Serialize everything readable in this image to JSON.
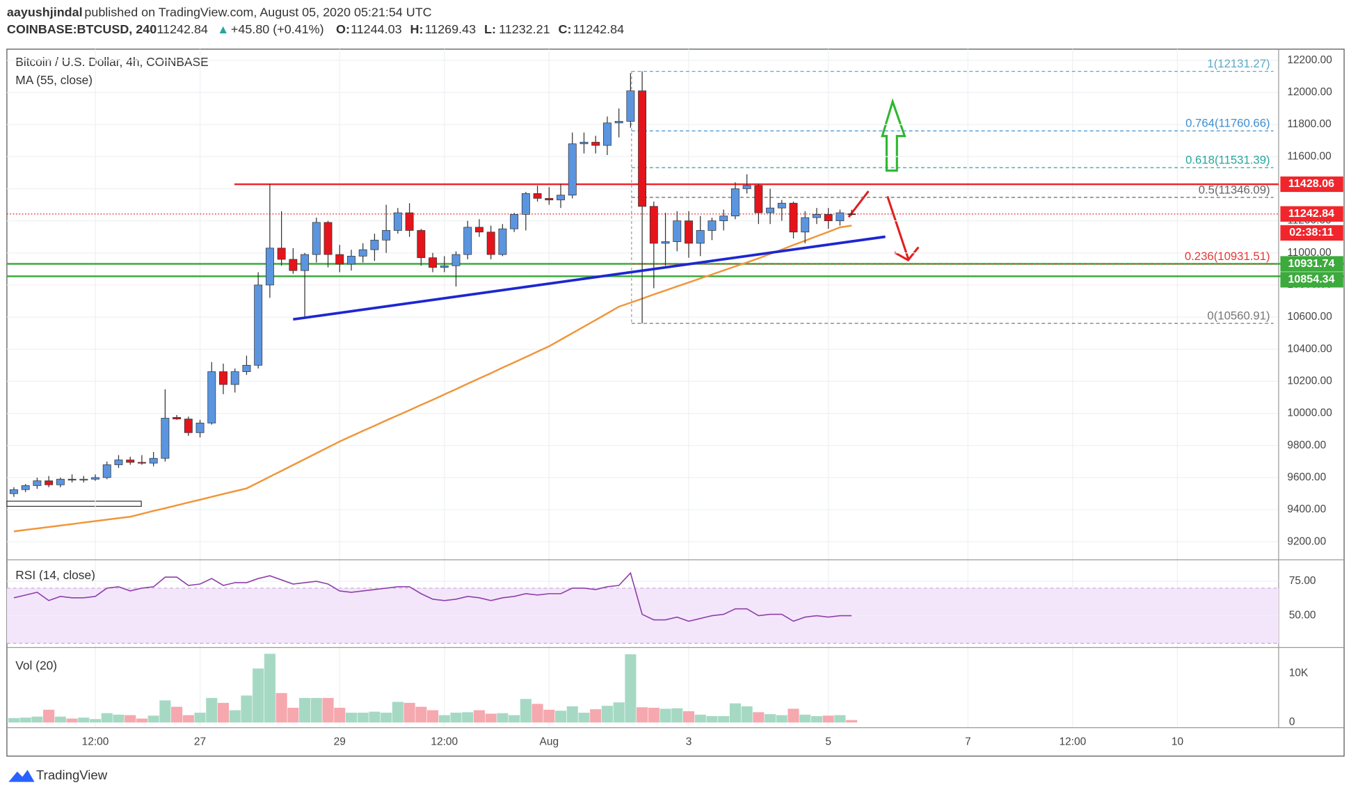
{
  "header": {
    "author": "aayushjindal",
    "published": "published on TradingView.com, August 05, 2020 05:21:54 UTC",
    "symbol": "COINBASE:BTCUSD, 240",
    "last": 11242.84,
    "arrow": "▲",
    "change": "+45.80 (+0.41%)",
    "ohlc": [
      {
        "key": "O:",
        "value": 11244.03
      },
      {
        "key": "H:",
        "value": 11269.43
      },
      {
        "key": "L:",
        "value": 11232.21
      },
      {
        "key": "C:",
        "value": 11242.84
      }
    ]
  },
  "chart_data": {
    "type": "candlestick",
    "title": "Bitcoin / U.S. Dollar, 4h, COINBASE",
    "up_color": "#5b95e0",
    "down_color": "#e5141b",
    "xlim": [
      -0.6,
      108.7
    ],
    "xticks": [
      {
        "value": 7,
        "label": "12:00"
      },
      {
        "value": 16,
        "label": "27"
      },
      {
        "value": 28,
        "label": "29"
      },
      {
        "value": 37,
        "label": "12:00"
      },
      {
        "value": 46,
        "label": "Aug"
      },
      {
        "value": 58,
        "label": "3"
      },
      {
        "value": 70,
        "label": "5"
      },
      {
        "value": 82,
        "label": "7"
      },
      {
        "value": 91,
        "label": "12:00"
      },
      {
        "value": 100,
        "label": "10"
      }
    ],
    "ylim": [
      9088,
      12270
    ],
    "yticks": [
      {
        "value": 9200,
        "label": "9200.00"
      },
      {
        "value": 9400,
        "label": "9400.00"
      },
      {
        "value": 9600,
        "label": "9600.00"
      },
      {
        "value": 9800,
        "label": "9800.00"
      },
      {
        "value": 10000,
        "label": "10000.00"
      },
      {
        "value": 10200,
        "label": "10200.00"
      },
      {
        "value": 10400,
        "label": "10400.00"
      },
      {
        "value": 10600,
        "label": "10600.00"
      },
      {
        "value": 10800,
        "label": "10800.00"
      },
      {
        "value": 11000,
        "label": "11000.00"
      },
      {
        "value": 11200,
        "label": "11200.00"
      },
      {
        "value": 11400,
        "label": "11400.00"
      },
      {
        "value": 11600,
        "label": "11600.00"
      },
      {
        "value": 11800,
        "label": "11800.00"
      },
      {
        "value": 12000,
        "label": "12000.00"
      },
      {
        "value": 12200,
        "label": "12200.00"
      }
    ],
    "grid": true,
    "candles": {
      "open": [
        9500,
        9525,
        9550,
        9580,
        9555,
        9590,
        9585,
        9590,
        9600,
        9680,
        9710,
        9695,
        9690,
        9720,
        9975,
        9965,
        9880,
        9940,
        10260,
        10180,
        10260,
        10300,
        10800,
        11030,
        10960,
        10890,
        10990,
        11190,
        10990,
        10930,
        10980,
        11020,
        11080,
        11140,
        11250,
        11140,
        10970,
        10910,
        10920,
        10990,
        11160,
        11130,
        10990,
        11150,
        11240,
        11370,
        11340,
        11330,
        11360,
        11680,
        11690,
        11670,
        11810,
        11820,
        12010,
        11290,
        11060,
        11070,
        11200,
        11060,
        11140,
        11200,
        11230,
        11400,
        11420,
        11250,
        11280,
        11310,
        11130,
        11220,
        11240,
        11200,
        11244.03
      ],
      "high": [
        9540,
        9560,
        9600,
        9610,
        9600,
        9620,
        9610,
        9620,
        9700,
        9740,
        9730,
        9740,
        9760,
        10150,
        9990,
        9980,
        9960,
        10320,
        10310,
        10280,
        10360,
        10880,
        11430,
        11260,
        11030,
        11000,
        11220,
        11200,
        11050,
        11020,
        11060,
        11120,
        11300,
        11280,
        11310,
        11150,
        11000,
        10980,
        11010,
        11200,
        11210,
        11170,
        11180,
        11250,
        11380,
        11420,
        11410,
        11430,
        11750,
        11750,
        11730,
        11850,
        11900,
        12120,
        12131.27,
        11320,
        11250,
        11260,
        11260,
        11230,
        11220,
        11270,
        11440,
        11490,
        11430,
        11400,
        11330,
        11320,
        11260,
        11280,
        11280,
        11270,
        11269.43
      ],
      "low": [
        9480,
        9510,
        9530,
        9540,
        9540,
        9570,
        9570,
        9580,
        9590,
        9660,
        9680,
        9680,
        9670,
        9700,
        9960,
        9860,
        9850,
        9930,
        10120,
        10130,
        10240,
        10280,
        10720,
        10920,
        10870,
        10600,
        10940,
        10910,
        10880,
        10890,
        10940,
        10950,
        11000,
        11120,
        11100,
        10920,
        10880,
        10880,
        10790,
        10960,
        11100,
        10960,
        10980,
        11130,
        11140,
        11320,
        11300,
        11280,
        11340,
        11620,
        11620,
        11610,
        11720,
        11780,
        10560.91,
        10780,
        10920,
        11010,
        10970,
        10980,
        11080,
        11140,
        11210,
        11370,
        11180,
        11180,
        11200,
        11090,
        11060,
        11180,
        11150,
        11170,
        11232.21
      ],
      "close": [
        9525,
        9550,
        9580,
        9555,
        9590,
        9585,
        9590,
        9600,
        9680,
        9710,
        9695,
        9690,
        9720,
        9970,
        9965,
        9880,
        9940,
        10260,
        10180,
        10260,
        10300,
        10800,
        11030,
        10960,
        10890,
        10990,
        11190,
        10990,
        10930,
        10980,
        11020,
        11080,
        11140,
        11250,
        11140,
        10970,
        10910,
        10920,
        10990,
        11160,
        11130,
        10990,
        11150,
        11240,
        11370,
        11340,
        11330,
        11360,
        11680,
        11690,
        11670,
        11810,
        11820,
        12010,
        11290,
        11060,
        11070,
        11200,
        11060,
        11140,
        11200,
        11230,
        11400,
        11420,
        11250,
        11280,
        11310,
        11130,
        11220,
        11240,
        11200,
        11250,
        11242.84
      ]
    },
    "ma": {
      "name": "MA (55, close)",
      "color": "#f0953b",
      "values": [
        9265,
        9274,
        9283,
        9292,
        9301,
        9310,
        9320,
        9329,
        9338,
        9347,
        9356,
        9374,
        9392,
        9409,
        9427,
        9445,
        9462,
        9480,
        9498,
        9515,
        9533,
        9569,
        9606,
        9642,
        9679,
        9715,
        9752,
        9788,
        9825,
        9858,
        9891,
        9923,
        9956,
        9988,
        10020,
        10053,
        10085,
        10118,
        10151,
        10185,
        10218,
        10251,
        10285,
        10318,
        10351,
        10385,
        10418,
        10459,
        10500,
        10541,
        10582,
        10623,
        10665,
        10690,
        10715,
        10741,
        10766,
        10791,
        10816,
        10841,
        10866,
        10891,
        10916,
        10941,
        10966,
        10994,
        11021,
        11049,
        11076,
        11104,
        11131,
        11159,
        11170
      ]
    },
    "resistance": {
      "value": 11428.06,
      "color": "#f0262c"
    },
    "supports": [
      {
        "value": 10931.74,
        "color": "#3caa3c"
      },
      {
        "value": 10854.34,
        "color": "#3caa3c"
      }
    ],
    "last_price": {
      "value": 11242.84,
      "countdown": "02:38:11",
      "color": "#f0262c"
    },
    "trendline": {
      "x": [
        24,
        74.9
      ],
      "values": [
        10586,
        11101
      ],
      "color": "#1c27d0"
    },
    "fib": [
      {
        "value": 12131.27,
        "label": "1(12131.27)",
        "color": "#5aa8c8"
      },
      {
        "value": 11760.66,
        "label": "0.764(11760.66)",
        "color": "#3f8fd0"
      },
      {
        "value": 11531.39,
        "label": "0.618(11531.39)",
        "color": "#26a69a"
      },
      {
        "value": 11346.09,
        "label": "0.5(11346.09)",
        "color": "#666666"
      },
      {
        "value": 10931.51,
        "label": "0.236(10931.51)",
        "color": "#e53935"
      },
      {
        "value": 10560.91,
        "label": "0(10560.91)",
        "color": "#777777"
      }
    ],
    "rsi": {
      "name": "RSI (14, close)",
      "color": "#8e3fa8",
      "band": [
        30,
        70
      ],
      "ylim": [
        26.9,
        90.6
      ],
      "yticks": [
        {
          "value": 50,
          "label": "50.00"
        },
        {
          "value": 75,
          "label": "75.00"
        }
      ],
      "values": [
        63,
        65,
        67,
        61,
        64,
        63,
        63,
        64,
        70,
        71,
        68,
        70,
        71,
        78,
        78,
        72,
        73,
        77,
        72,
        74,
        74,
        77,
        79,
        76,
        73,
        74,
        75,
        73,
        68,
        67,
        68,
        69,
        70,
        71,
        71,
        66,
        62,
        61,
        62,
        64,
        63,
        61,
        63,
        64,
        66,
        65,
        66,
        66,
        70,
        70,
        69,
        71,
        72,
        81,
        51,
        47,
        47,
        49,
        46,
        48,
        50,
        51,
        55,
        55,
        50,
        51,
        51,
        46,
        49,
        50,
        49,
        50,
        50
      ]
    },
    "volume": {
      "name": "Vol (20)",
      "up_color": "#a6d9c4",
      "down_color": "#f5a8ae",
      "ylim": [
        -1053,
        15263
      ],
      "yticks": [
        0,
        {
          "value": 10000,
          "label": "10K"
        }
      ],
      "values": [
        900,
        1000,
        1200,
        2600,
        1200,
        800,
        1000,
        700,
        1900,
        1600,
        1500,
        800,
        1400,
        4500,
        3200,
        1500,
        2000,
        5000,
        4000,
        2500,
        5500,
        11000,
        14000,
        6000,
        3000,
        5000,
        5000,
        5000,
        3000,
        2000,
        2000,
        2200,
        2000,
        4200,
        4000,
        3200,
        2500,
        1500,
        2000,
        2100,
        2500,
        1800,
        1900,
        1500,
        4800,
        3800,
        2600,
        2400,
        3300,
        2000,
        2700,
        3400,
        4100,
        13900,
        3100,
        3000,
        2800,
        2900,
        2300,
        1600,
        1300,
        1300,
        3900,
        3300,
        2100,
        1700,
        1500,
        2800,
        1600,
        1300,
        1400,
        1500,
        500
      ]
    }
  },
  "footer": {
    "brand": "TradingView"
  }
}
